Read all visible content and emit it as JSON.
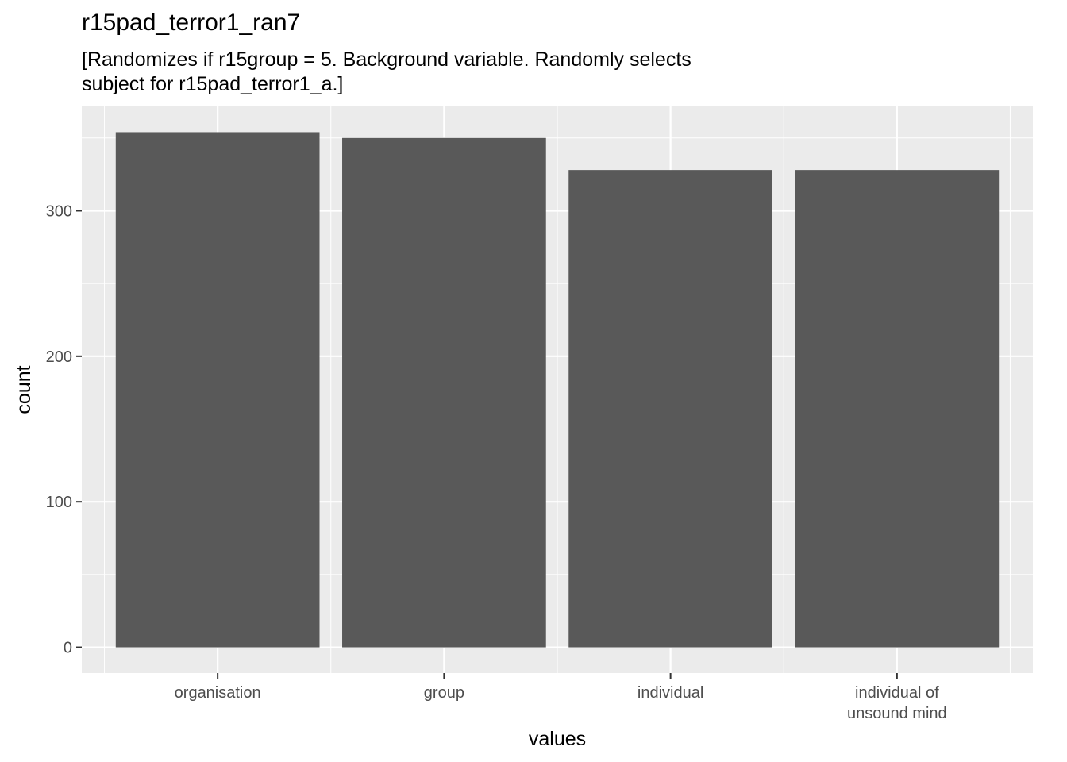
{
  "chart_data": {
    "type": "bar",
    "title": "r15pad_terror1_ran7",
    "subtitle_lines": [
      "[Randomizes if r15group = 5. Background variable. Randomly selects",
      "subject for r15pad_terror1_a.]"
    ],
    "xlabel": "values",
    "ylabel": "count",
    "categories": [
      [
        "organisation"
      ],
      [
        "group"
      ],
      [
        "individual"
      ],
      [
        "individual of",
        "unsound mind"
      ]
    ],
    "values": [
      354,
      350,
      328,
      328
    ],
    "yticks": [
      0,
      100,
      200,
      300
    ],
    "ylim": [
      -17.7,
      371.7
    ],
    "grid": true,
    "colors": {
      "bar": "#595959",
      "panel": "#ebebeb",
      "grid": "#ffffff"
    }
  }
}
